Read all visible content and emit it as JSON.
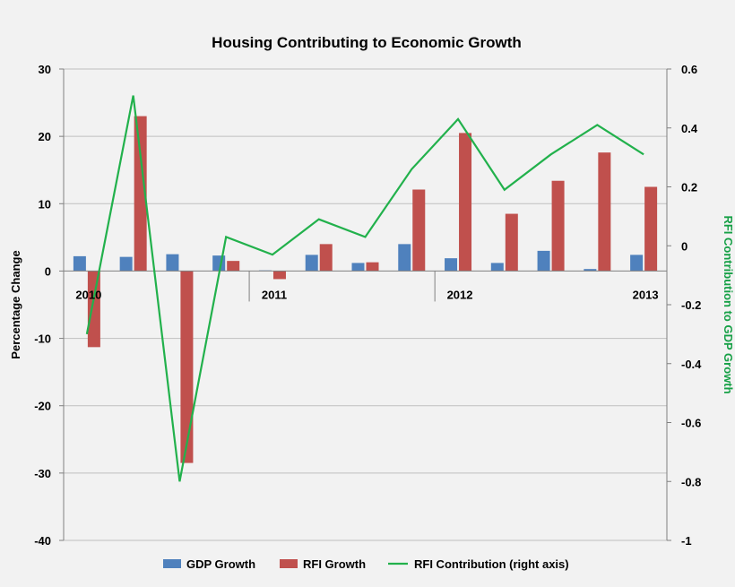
{
  "chart_data": {
    "type": "bar",
    "title": "Housing Contributing to Economic Growth",
    "ylabel": "Percentage Change",
    "y2label": "RFI Contribution to GDP Growth",
    "ylim": [
      -40,
      30
    ],
    "y2lim": [
      -1,
      0.6
    ],
    "yticks": [
      "30",
      "20",
      "10",
      "0",
      "-10",
      "-20",
      "-30",
      "-40"
    ],
    "y2ticks": [
      "0.6",
      "0.4",
      "0.2",
      "0",
      "-0.2",
      "-0.4",
      "-0.6",
      "-0.8",
      "-1"
    ],
    "year_labels": [
      {
        "label": "2010",
        "quarter_index": 0
      },
      {
        "label": "2011",
        "quarter_index": 4
      },
      {
        "label": "2012",
        "quarter_index": 8
      },
      {
        "label": "2013",
        "quarter_index": 12
      }
    ],
    "legend_position": "bottom",
    "grid": true,
    "series": [
      {
        "name": "GDP Growth",
        "kind": "bar",
        "axis": "left",
        "color": "#4f81bd",
        "values": [
          2.2,
          2.1,
          2.5,
          2.3,
          0.1,
          2.4,
          1.2,
          4.0,
          1.9,
          1.2,
          3.0,
          0.3,
          2.4
        ]
      },
      {
        "name": "RFI Growth",
        "kind": "bar",
        "axis": "left",
        "color": "#c0504d",
        "values": [
          -11.3,
          23.0,
          -28.5,
          1.5,
          -1.2,
          4.0,
          1.3,
          12.1,
          20.5,
          8.5,
          13.4,
          17.6,
          12.5
        ]
      },
      {
        "name": "RFI Contribution (right axis)",
        "kind": "line",
        "axis": "right",
        "color": "#22b14c",
        "values": [
          -0.3,
          0.51,
          -0.8,
          0.03,
          -0.03,
          0.09,
          0.03,
          0.26,
          0.43,
          0.19,
          0.31,
          0.41,
          0.31
        ]
      }
    ]
  }
}
